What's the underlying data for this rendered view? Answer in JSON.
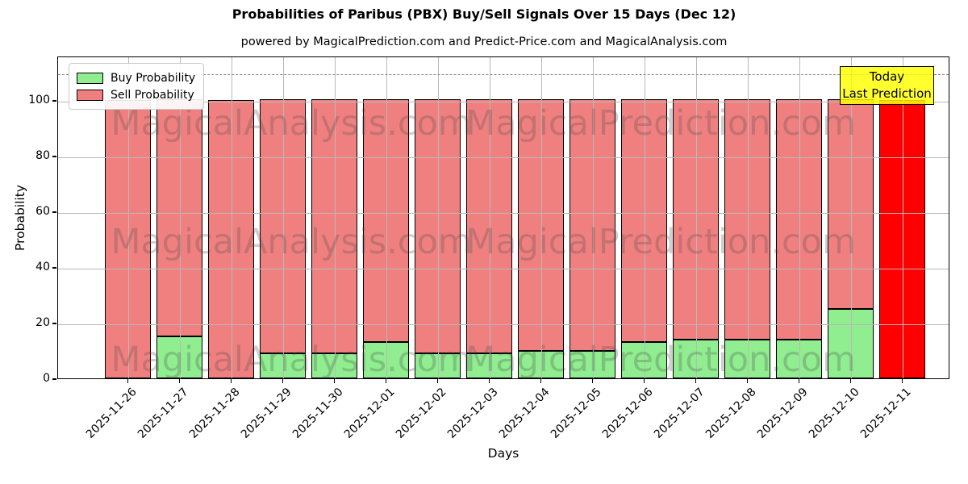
{
  "chart": {
    "title": "Probabilities of Paribus (PBX) Buy/Sell Signals Over 15 Days (Dec 12)",
    "subtitle": "powered by MagicalPrediction.com and Predict-Price.com and MagicalAnalysis.com",
    "xlabel": "Days",
    "ylabel": "Probability"
  },
  "legend": {
    "items": [
      {
        "label": "Buy Probability",
        "color": "#90EE90"
      },
      {
        "label": "Sell Probability",
        "color": "#F08080"
      }
    ]
  },
  "annotation": {
    "line1": "Today",
    "line2": "Last Prediction",
    "bg_color": "#FFFF00"
  },
  "watermarks": {
    "left_text": "MagicalAnalysis.com",
    "right_text": "MagicalPrediction.com"
  },
  "chart_data": {
    "type": "bar",
    "stacked": true,
    "title": "Probabilities of Paribus (PBX) Buy/Sell Signals Over 15 Days (Dec 12)",
    "xlabel": "Days",
    "ylabel": "Probability",
    "categories": [
      "2025-11-26",
      "2025-11-27",
      "2025-11-28",
      "2025-11-29",
      "2025-11-30",
      "2025-12-01",
      "2025-12-02",
      "2025-12-03",
      "2025-12-04",
      "2025-12-05",
      "2025-12-06",
      "2025-12-07",
      "2025-12-08",
      "2025-12-09",
      "2025-12-10",
      "2025-12-11"
    ],
    "series": [
      {
        "name": "Buy Probability",
        "color": "#90EE90",
        "values": [
          0,
          15,
          0,
          9,
          9,
          13,
          9,
          9,
          10,
          10,
          13,
          14,
          14,
          14,
          25,
          0
        ]
      },
      {
        "name": "Sell Probability",
        "color": "#F08080",
        "values": [
          100,
          85,
          100,
          91,
          91,
          87,
          91,
          91,
          90,
          90,
          87,
          86,
          86,
          86,
          75,
          100
        ]
      }
    ],
    "today_bar": {
      "category": "2025-12-11",
      "index": 15,
      "sell_color": "#FF0000"
    },
    "yticks": [
      0,
      20,
      40,
      60,
      80,
      100
    ],
    "ylim": [
      0,
      116
    ],
    "dashed_line_y": 110,
    "grid": true,
    "legend_position": "upper-left",
    "bar_edge_color": "#000000"
  }
}
